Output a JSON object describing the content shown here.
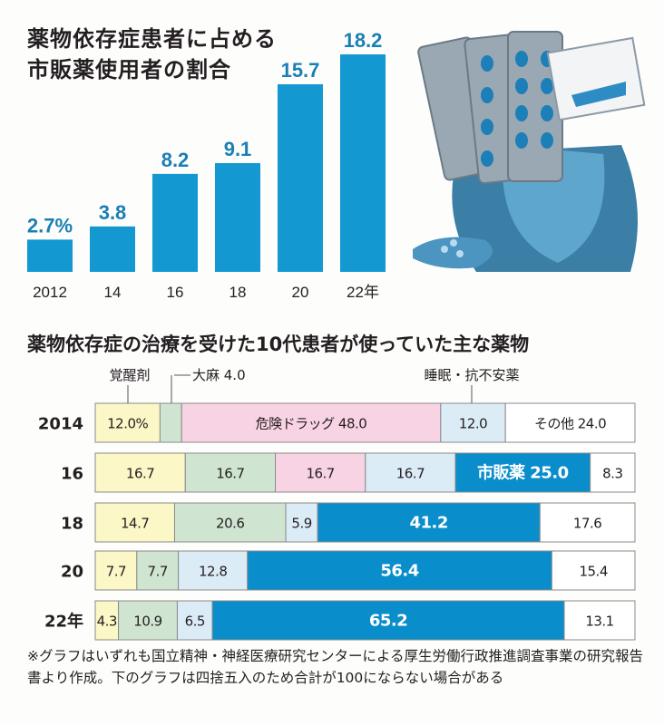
{
  "chart_data": [
    {
      "type": "bar",
      "title": "薬物依存症患者に占める市販薬使用者の割合",
      "categories": [
        "2012",
        "14",
        "16",
        "18",
        "20",
        "22年"
      ],
      "values": [
        2.7,
        3.8,
        8.2,
        9.1,
        15.7,
        18.2
      ],
      "value_labels": [
        "2.7%",
        "3.8",
        "8.2",
        "9.1",
        "15.7",
        "18.2"
      ],
      "unit": "%",
      "ylim": [
        0,
        18.2
      ],
      "grid": false,
      "color": "#1398d2"
    },
    {
      "type": "bar",
      "orientation": "horizontal-stacked-100",
      "title": "薬物依存症の治療を受けた10代患者が使っていた主な薬物",
      "categories": [
        "2014",
        "16",
        "18",
        "20",
        "22年"
      ],
      "legend_labels": [
        {
          "name": "覚醒剤",
          "text": "覚醒剤"
        },
        {
          "name": "大麻",
          "text": "大麻 4.0"
        },
        {
          "name": "睡眠・抗不安薬",
          "text": "睡眠・抗不安薬"
        }
      ],
      "colors": {
        "覚醒剤": "#fbf7c6",
        "大麻": "#cfe5d2",
        "危険ドラッグ": "#f8d3e4",
        "睡眠・抗不安薬": "#dbecf7",
        "市販薬": "#0a8ecb",
        "その他": "#ffffff"
      },
      "rows": [
        {
          "year": "2014",
          "segments": [
            {
              "cat": "覚醒剤",
              "value": 12.0,
              "label": "12.0%"
            },
            {
              "cat": "大麻",
              "value": 4.0,
              "label": ""
            },
            {
              "cat": "危険ドラッグ",
              "value": 48.0,
              "label": "危険ドラッグ 48.0"
            },
            {
              "cat": "睡眠・抗不安薬",
              "value": 12.0,
              "label": "12.0"
            },
            {
              "cat": "その他",
              "value": 24.0,
              "label": "その他 24.0"
            }
          ]
        },
        {
          "year": "16",
          "segments": [
            {
              "cat": "覚醒剤",
              "value": 16.7,
              "label": "16.7"
            },
            {
              "cat": "大麻",
              "value": 16.7,
              "label": "16.7"
            },
            {
              "cat": "危険ドラッグ",
              "value": 16.7,
              "label": "16.7"
            },
            {
              "cat": "睡眠・抗不安薬",
              "value": 16.7,
              "label": "16.7"
            },
            {
              "cat": "市販薬",
              "value": 25.0,
              "label": "市販薬 25.0"
            },
            {
              "cat": "その他",
              "value": 8.3,
              "label": "8.3"
            }
          ]
        },
        {
          "year": "18",
          "segments": [
            {
              "cat": "覚醒剤",
              "value": 14.7,
              "label": "14.7"
            },
            {
              "cat": "大麻",
              "value": 20.6,
              "label": "20.6"
            },
            {
              "cat": "睡眠・抗不安薬",
              "value": 5.9,
              "label": "5.9"
            },
            {
              "cat": "市販薬",
              "value": 41.2,
              "label": "41.2"
            },
            {
              "cat": "その他",
              "value": 17.6,
              "label": "17.6"
            }
          ]
        },
        {
          "year": "20",
          "segments": [
            {
              "cat": "覚醒剤",
              "value": 7.7,
              "label": "7.7"
            },
            {
              "cat": "大麻",
              "value": 7.7,
              "label": "7.7"
            },
            {
              "cat": "睡眠・抗不安薬",
              "value": 12.8,
              "label": "12.8"
            },
            {
              "cat": "市販薬",
              "value": 56.4,
              "label": "56.4"
            },
            {
              "cat": "その他",
              "value": 15.4,
              "label": "15.4"
            }
          ]
        },
        {
          "year": "22年",
          "segments": [
            {
              "cat": "覚醒剤",
              "value": 4.3,
              "label": "4.3"
            },
            {
              "cat": "大麻",
              "value": 10.9,
              "label": "10.9"
            },
            {
              "cat": "睡眠・抗不安薬",
              "value": 6.5,
              "label": "6.5"
            },
            {
              "cat": "市販薬",
              "value": 65.2,
              "label": "65.2"
            },
            {
              "cat": "その他",
              "value": 13.1,
              "label": "13.1"
            }
          ]
        }
      ]
    }
  ],
  "titles": {
    "top_line1": "薬物依存症患者に占める",
    "top_line2": "市販薬使用者の割合",
    "bottom": "薬物依存症の治療を受けた10代患者が使っていた主な薬物"
  },
  "footnote": "※グラフはいずれも国立精神・神経医療研究センターによる厚生労働行政推進調査事業の研究報告書より作成。下のグラフは四捨五入のため合計が100にならない場合がある",
  "illustration": "person-holding-pill-packs-illustration"
}
